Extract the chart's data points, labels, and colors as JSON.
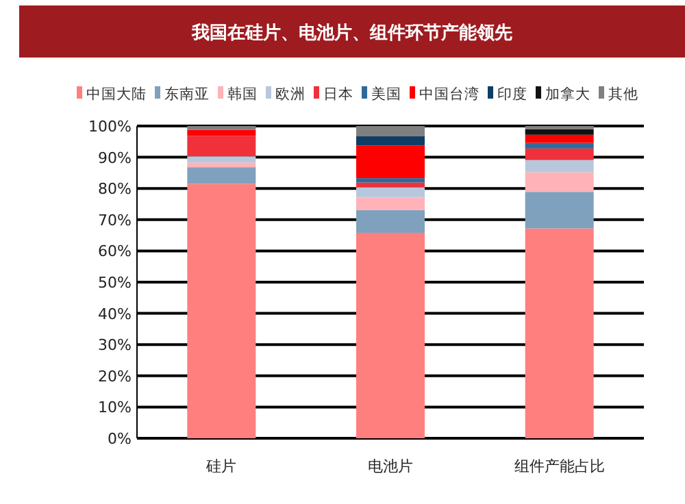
{
  "chart_data": {
    "type": "bar",
    "title": "我国在硅片、电池片、组件环节产能领先",
    "stacked": true,
    "categories": [
      "硅片",
      "电池片",
      "组件产能占比"
    ],
    "series": [
      {
        "name": "中国大陆",
        "color": "#ff7f7f",
        "values": [
          81.5,
          65.8,
          67.2
        ]
      },
      {
        "name": "东南亚",
        "color": "#7fa1be",
        "values": [
          5.3,
          7.3,
          11.7
        ]
      },
      {
        "name": "韩国",
        "color": "#ffb3b8",
        "values": [
          1.5,
          4,
          6.3
        ]
      },
      {
        "name": "欧洲",
        "color": "#b8c8dc",
        "values": [
          2,
          3.3,
          3.9
        ]
      },
      {
        "name": "日本",
        "color": "#f0303a",
        "values": [
          6.5,
          1.5,
          3.7
        ]
      },
      {
        "name": "美国",
        "color": "#2f6a9a",
        "values": [
          0,
          1.4,
          1.8
        ]
      },
      {
        "name": "中国台湾",
        "color": "#ff0000",
        "values": [
          2,
          10.5,
          2.6
        ]
      },
      {
        "name": "印度",
        "color": "#0f3d66",
        "values": [
          0,
          2.9,
          0
        ]
      },
      {
        "name": "加拿大",
        "color": "#111111",
        "values": [
          0,
          0,
          1.8
        ]
      },
      {
        "name": "其他",
        "color": "#808080",
        "values": [
          1.2,
          3.3,
          1.0
        ]
      }
    ],
    "ylim": [
      0,
      100
    ],
    "yticks": [
      {
        "value": 0,
        "label": "0%"
      },
      {
        "value": 10,
        "label": "10%"
      },
      {
        "value": 20,
        "label": "20%"
      },
      {
        "value": 30,
        "label": "30%"
      },
      {
        "value": 40,
        "label": "40%"
      },
      {
        "value": 50,
        "label": "50%"
      },
      {
        "value": 60,
        "label": "60%"
      },
      {
        "value": 70,
        "label": "70%"
      },
      {
        "value": 80,
        "label": "80%"
      },
      {
        "value": 90,
        "label": "90%"
      },
      {
        "value": 100,
        "label": "100%"
      }
    ],
    "grid": "y",
    "legend": "top"
  }
}
